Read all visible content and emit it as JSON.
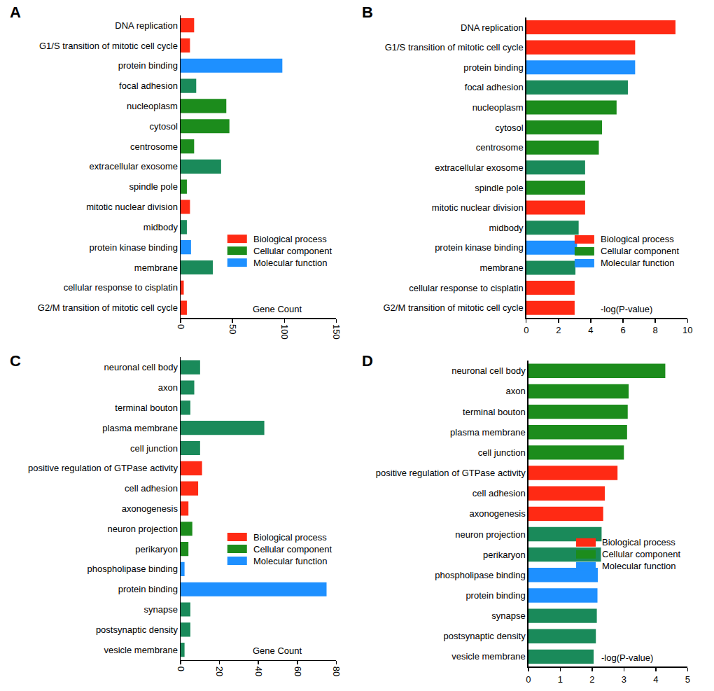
{
  "chart_data": [
    {
      "type": "bar",
      "title": "A",
      "orientation": "horizontal",
      "xlabel": "Gene Count",
      "categories": [
        "DNA replication",
        "G1/S transition of mitotic cell cycle",
        "protein binding",
        "focal adhesion",
        "nucleoplasm",
        "cytosol",
        "centrosome",
        "extracellular exosome",
        "spindle pole",
        "mitotic nuclear division",
        "midbody",
        "protein kinase binding",
        "membrane",
        "cellular response to cisplatin",
        "G2/M transition of mitotic cell cycle"
      ],
      "series": [
        {
          "name": "Biological process",
          "color": "#ff2a14",
          "values": [
            13,
            9,
            null,
            null,
            null,
            null,
            null,
            null,
            null,
            9,
            null,
            null,
            null,
            3,
            6
          ]
        },
        {
          "name": "Cellular component",
          "color": "#1c8c1c",
          "values": [
            null,
            null,
            null,
            15,
            44,
            47,
            13,
            39,
            6,
            null,
            6,
            null,
            31,
            null,
            null
          ],
          "colors": [
            null,
            null,
            null,
            "#1a8a5a",
            "#1c8c1c",
            "#1c8c1c",
            "#1c8c1c",
            "#1a8a5a",
            "#1c8c1c",
            null,
            "#1a8a5a",
            null,
            "#1a8a5a",
            null,
            null
          ]
        },
        {
          "name": "Molecular function",
          "color": "#1e90ff",
          "values": [
            null,
            null,
            98,
            null,
            null,
            null,
            null,
            null,
            null,
            null,
            null,
            10,
            null,
            null,
            null
          ]
        }
      ],
      "xlim": [
        0,
        150
      ],
      "xticks": [
        0,
        50,
        100,
        150
      ],
      "grid": false,
      "legend": "lower right"
    },
    {
      "type": "bar",
      "title": "B",
      "orientation": "horizontal",
      "xlabel": "-log(P-value)",
      "categories": [
        "DNA replication",
        "G1/S transition of mitotic cell cycle",
        "protein binding",
        "focal adhesion",
        "nucleoplasm",
        "cytosol",
        "centrosome",
        "extracellular exosome",
        "spindle pole",
        "mitotic nuclear division",
        "midbody",
        "protein kinase binding",
        "membrane",
        "cellular response to cisplatin",
        "G2/M transition of mitotic cell cycle"
      ],
      "series": [
        {
          "name": "Biological process",
          "color": "#ff2a14",
          "values": [
            9.25,
            6.75,
            null,
            null,
            null,
            null,
            null,
            null,
            null,
            3.65,
            null,
            null,
            null,
            3.0,
            3.0
          ]
        },
        {
          "name": "Cellular component",
          "color": "#1c8c1c",
          "values": [
            null,
            null,
            null,
            6.3,
            5.6,
            4.7,
            4.5,
            3.65,
            3.65,
            null,
            3.25,
            null,
            3.05,
            null,
            null
          ],
          "colors": [
            null,
            null,
            null,
            "#1a8a5a",
            "#1c8c1c",
            "#1c8c1c",
            "#1c8c1c",
            "#1a8a5a",
            "#1c8c1c",
            null,
            "#1a8a5a",
            null,
            "#1a8a5a",
            null,
            null
          ]
        },
        {
          "name": "Molecular function",
          "color": "#1e90ff",
          "values": [
            null,
            null,
            6.75,
            null,
            null,
            null,
            null,
            null,
            null,
            null,
            null,
            3.15,
            null,
            null,
            null
          ]
        }
      ],
      "xlim": [
        0,
        10
      ],
      "xticks": [
        0,
        2,
        4,
        6,
        8,
        10
      ],
      "grid": false,
      "legend": "lower right"
    },
    {
      "type": "bar",
      "title": "C",
      "orientation": "horizontal",
      "xlabel": "Gene Count",
      "categories": [
        "neuronal cell body",
        "axon",
        "terminal bouton",
        "plasma membrane",
        "cell junction",
        "positive regulation of GTPase activity",
        "cell adhesion",
        "axonogenesis",
        "neuron projection",
        "perikaryon",
        "phospholipase binding",
        "protein binding",
        "synapse",
        "postsynaptic density",
        "vesicle membrane"
      ],
      "series": [
        {
          "name": "Biological process",
          "color": "#ff2a14",
          "values": [
            null,
            null,
            null,
            null,
            null,
            11,
            9,
            4,
            null,
            null,
            null,
            null,
            null,
            null,
            null
          ]
        },
        {
          "name": "Cellular component",
          "color": "#1c8c1c",
          "values": [
            10,
            7,
            5,
            43,
            10,
            null,
            null,
            null,
            6,
            4,
            null,
            null,
            5,
            5,
            2
          ],
          "colors": [
            "#1a8a5a",
            "#1a8a5a",
            "#1a8a5a",
            "#1a8a5a",
            "#1a8a5a",
            null,
            null,
            null,
            "#1c8c1c",
            "#1c8c1c",
            null,
            null,
            "#1a8a5a",
            "#1a8a5a",
            "#1a8a5a"
          ]
        },
        {
          "name": "Molecular function",
          "color": "#1e90ff",
          "values": [
            null,
            null,
            null,
            null,
            null,
            null,
            null,
            null,
            null,
            null,
            2,
            75,
            null,
            null,
            null
          ]
        }
      ],
      "xlim": [
        0,
        80
      ],
      "xticks": [
        0,
        20,
        40,
        60,
        80
      ],
      "grid": false,
      "legend": "center right"
    },
    {
      "type": "bar",
      "title": "D",
      "orientation": "horizontal",
      "xlabel": "-log(P-value)",
      "categories": [
        "neuronal cell body",
        "axon",
        "terminal bouton",
        "plasma membrane",
        "cell junction",
        "positive regulation of GTPase activity",
        "cell adhesion",
        "axonogenesis",
        "neuron projection",
        "perikaryon",
        "phospholipase binding",
        "protein binding",
        "synapse",
        "postsynaptic density",
        "vesicle membrane"
      ],
      "series": [
        {
          "name": "Biological process",
          "color": "#ff2a14",
          "values": [
            null,
            null,
            null,
            null,
            null,
            2.8,
            2.4,
            2.35,
            null,
            null,
            null,
            null,
            null,
            null,
            null
          ]
        },
        {
          "name": "Cellular component",
          "color": "#1c8c1c",
          "values": [
            4.3,
            3.15,
            3.12,
            3.1,
            3.0,
            null,
            null,
            null,
            2.3,
            2.28,
            null,
            null,
            2.15,
            2.12,
            2.05
          ],
          "colors": [
            "#1c8c1c",
            "#1c8c1c",
            "#1c8c1c",
            "#1c8c1c",
            "#1c8c1c",
            null,
            null,
            null,
            "#1a8a5a",
            "#1a8a5a",
            null,
            null,
            "#1a8a5a",
            "#1a8a5a",
            "#1a8a5a"
          ]
        },
        {
          "name": "Molecular function",
          "color": "#1e90ff",
          "values": [
            null,
            null,
            null,
            null,
            null,
            null,
            null,
            null,
            null,
            null,
            2.18,
            2.17,
            null,
            null,
            null
          ]
        }
      ],
      "xlim": [
        0,
        5
      ],
      "xticks": [
        0,
        1,
        2,
        3,
        4,
        5
      ],
      "grid": false,
      "legend": "center right"
    }
  ]
}
